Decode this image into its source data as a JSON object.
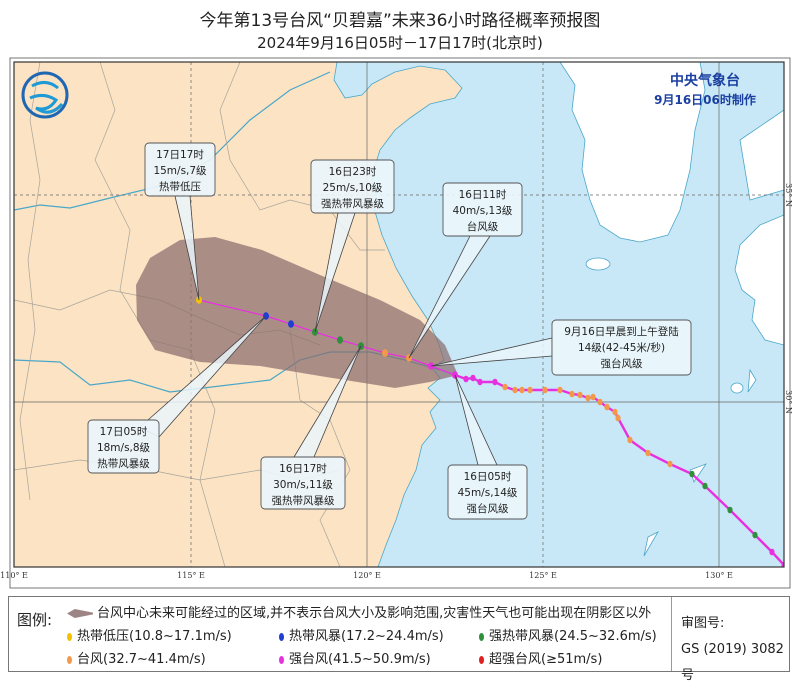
{
  "title": "今年第13号台风“贝碧嘉”未来36小时路径概率预报图",
  "subtitle": "2024年9月16日05时－17日17时(北京时)",
  "issuer": {
    "name": "中央气象台",
    "made_at": "9月16日06时制作"
  },
  "axes": {
    "lon_labels": [
      "110° E",
      "115° E",
      "120° E",
      "125° E",
      "130° E"
    ],
    "lat_labels": [
      "35° N",
      "30° N"
    ]
  },
  "forecast_labels": {
    "f1717": {
      "time": "17日17时",
      "wind": "15m/s,7级",
      "grade": "热带低压"
    },
    "f1623": {
      "time": "16日23时",
      "wind": "25m/s,10级",
      "grade": "强热带风暴级"
    },
    "f1611": {
      "time": "16日11时",
      "wind": "40m/s,13级",
      "grade": "台风级"
    },
    "landfall": {
      "line1": "9月16日早晨到上午登陆",
      "line2": "14级(42-45米/秒)",
      "grade": "强台风级"
    },
    "f1605": {
      "time": "16日05时",
      "wind": "45m/s,14级",
      "grade": "强台风级"
    },
    "f1705": {
      "time": "17日05时",
      "wind": "18m/s,8级",
      "grade": "热带风暴级"
    },
    "f1617": {
      "time": "16日17时",
      "wind": "30m/s,11级",
      "grade": "强热带风暴级"
    }
  },
  "legend": {
    "title": "图例:",
    "cone_text": "台风中心未来可能经过的区域,并不表示台风大小及影响范围,灾害性天气也可能出现在阴影区以外",
    "items": [
      {
        "label": "热带低压(10.8~17.1m/s)",
        "color": "#f2c200"
      },
      {
        "label": "热带风暴(17.2~24.4m/s)",
        "color": "#1f3fd0"
      },
      {
        "label": "强热带风暴(24.5~32.6m/s)",
        "color": "#2f8f3a"
      },
      {
        "label": "台风(32.7~41.4m/s)",
        "color": "#f39a4a"
      },
      {
        "label": "强台风(41.5~50.9m/s)",
        "color": "#e830e0"
      },
      {
        "label": "超强台风(≥51m/s)",
        "color": "#e02020"
      }
    ],
    "review_label": "审图号:",
    "review_number": "GS (2019) 3082号"
  },
  "colors": {
    "land": "#fbe3c4",
    "sea": "#c9e8f7",
    "foreign_land": "#ffffff",
    "cone": "#8a6e6e",
    "track": "#e830e0",
    "issuer": "#1a3fa0"
  }
}
